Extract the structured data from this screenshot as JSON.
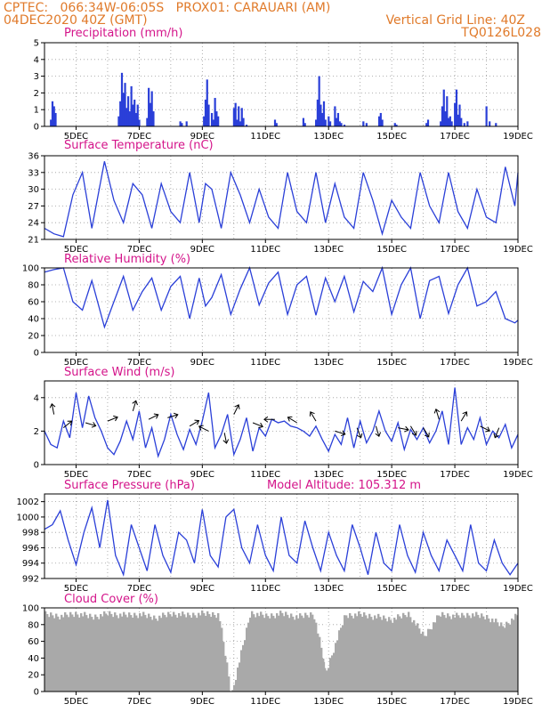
{
  "header": {
    "line1_left": "CPTEC:   066:34W-06:05S   PROX01: CARAUARI (AM)",
    "line2_left": "04DEC2020 40Z (GMT)",
    "line2_right": "Vertical Grid Line: 40Z",
    "line3_right": "TQ0126L028"
  },
  "colors": {
    "header": "#e07a2a",
    "title": "#d4148a",
    "line": "#2a3fd8",
    "cloud": "#a9a9a9"
  },
  "x_ticks": [
    "5DEC",
    "7DEC",
    "9DEC",
    "11DEC",
    "13DEC",
    "15DEC",
    "17DEC",
    "19DEC"
  ],
  "model_altitude": "Model Altitude: 105.312 m",
  "chart_data": [
    {
      "type": "bar",
      "title": "Precipitation (mm/h)",
      "ylim": [
        0,
        5
      ],
      "yticks": [
        "0",
        "1",
        "2",
        "3",
        "4",
        "5"
      ],
      "x": [
        4.2,
        4.25,
        4.3,
        4.35,
        6.35,
        6.4,
        6.45,
        6.5,
        6.55,
        6.6,
        6.65,
        6.7,
        6.75,
        6.8,
        6.85,
        6.9,
        6.95,
        7.0,
        7.25,
        7.3,
        7.35,
        7.4,
        7.45,
        8.3,
        8.35,
        8.5,
        9.05,
        9.1,
        9.15,
        9.2,
        9.3,
        9.35,
        9.4,
        9.45,
        9.5,
        10.0,
        10.05,
        10.1,
        10.15,
        10.2,
        10.25,
        10.3,
        10.4,
        11.3,
        11.35,
        12.2,
        12.25,
        12.6,
        12.65,
        12.7,
        12.75,
        12.8,
        12.85,
        12.9,
        13.0,
        13.05,
        13.2,
        13.25,
        13.3,
        13.35,
        13.4,
        13.5,
        14.1,
        14.2,
        14.6,
        14.65,
        14.7,
        15.1,
        15.15,
        16.1,
        16.15,
        16.55,
        16.6,
        16.65,
        16.7,
        16.75,
        16.8,
        16.85,
        16.9,
        17.0,
        17.05,
        17.1,
        17.15,
        17.2,
        17.3,
        17.4,
        18.0,
        18.1,
        18.3
      ],
      "values": [
        0.4,
        1.5,
        1.2,
        0.8,
        0.6,
        1.5,
        3.2,
        2.0,
        2.6,
        1.1,
        1.8,
        0.9,
        2.4,
        1.3,
        1.6,
        0.8,
        1.3,
        0.4,
        0.5,
        2.3,
        1.4,
        2.1,
        0.9,
        0.3,
        0.2,
        0.3,
        0.6,
        1.6,
        2.8,
        1.3,
        0.8,
        0.4,
        1.7,
        0.9,
        0.6,
        1.1,
        1.4,
        0.4,
        1.2,
        0.3,
        1.1,
        0.5,
        0.1,
        0.4,
        0.2,
        0.5,
        0.2,
        0.4,
        1.6,
        3.0,
        1.3,
        0.8,
        1.5,
        0.4,
        0.6,
        0.3,
        1.2,
        0.5,
        0.8,
        0.3,
        0.2,
        0.1,
        0.3,
        0.2,
        0.6,
        0.8,
        0.4,
        0.2,
        0.1,
        0.2,
        0.4,
        0.3,
        1.2,
        2.2,
        0.9,
        1.8,
        0.5,
        0.6,
        0.3,
        1.4,
        2.2,
        0.7,
        1.3,
        0.5,
        0.2,
        0.3,
        1.2,
        0.3,
        0.2
      ]
    },
    {
      "type": "line",
      "title": "Surface Temperature (nC)",
      "ylim": [
        21,
        36
      ],
      "yticks": [
        "21",
        "24",
        "27",
        "30",
        "33",
        "36"
      ],
      "x": [
        4.0,
        4.3,
        4.6,
        4.9,
        5.2,
        5.5,
        5.9,
        6.2,
        6.5,
        6.8,
        7.1,
        7.4,
        7.7,
        8.0,
        8.3,
        8.6,
        8.9,
        9.1,
        9.3,
        9.6,
        9.9,
        10.2,
        10.5,
        10.8,
        11.1,
        11.4,
        11.7,
        12.0,
        12.3,
        12.6,
        12.9,
        13.2,
        13.5,
        13.8,
        14.1,
        14.4,
        14.7,
        15.0,
        15.3,
        15.6,
        15.9,
        16.2,
        16.5,
        16.8,
        17.1,
        17.4,
        17.7,
        18.0,
        18.3,
        18.6,
        18.9,
        19.0
      ],
      "values": [
        23,
        22,
        21.5,
        29,
        33,
        23,
        35,
        28,
        24,
        31,
        29,
        23,
        31,
        26,
        24,
        33,
        24,
        31,
        30,
        23,
        33,
        29,
        24,
        30,
        25,
        23,
        33,
        26,
        24,
        33,
        24,
        31,
        25,
        23,
        33,
        28,
        22,
        28,
        25,
        23,
        33,
        27,
        24,
        33,
        26,
        23,
        30,
        25,
        24,
        34,
        27,
        33
      ]
    },
    {
      "type": "line",
      "title": "Relative Humidity (%)",
      "ylim": [
        0,
        100
      ],
      "yticks": [
        "0",
        "20",
        "40",
        "60",
        "80",
        "100"
      ],
      "x": [
        4.0,
        4.3,
        4.6,
        4.9,
        5.2,
        5.5,
        5.9,
        6.2,
        6.5,
        6.8,
        7.1,
        7.4,
        7.7,
        8.0,
        8.3,
        8.6,
        8.9,
        9.1,
        9.3,
        9.6,
        9.9,
        10.2,
        10.5,
        10.8,
        11.1,
        11.4,
        11.7,
        12.0,
        12.3,
        12.6,
        12.9,
        13.2,
        13.5,
        13.8,
        14.1,
        14.4,
        14.7,
        15.0,
        15.3,
        15.6,
        15.9,
        16.2,
        16.5,
        16.8,
        17.1,
        17.4,
        17.7,
        18.0,
        18.3,
        18.6,
        18.9,
        19.0
      ],
      "values": [
        95,
        98,
        100,
        60,
        50,
        85,
        30,
        60,
        90,
        50,
        72,
        88,
        50,
        78,
        90,
        40,
        88,
        55,
        65,
        92,
        45,
        75,
        100,
        56,
        82,
        95,
        45,
        80,
        90,
        44,
        88,
        60,
        90,
        48,
        84,
        72,
        100,
        45,
        80,
        100,
        40,
        85,
        90,
        46,
        80,
        100,
        55,
        60,
        72,
        40,
        35,
        38
      ]
    },
    {
      "type": "line",
      "title": "Surface Wind (m/s)",
      "ylim": [
        0,
        5
      ],
      "yticks": [
        "0",
        "2",
        "4"
      ],
      "x": [
        4.0,
        4.2,
        4.4,
        4.6,
        4.8,
        5.0,
        5.2,
        5.4,
        5.6,
        5.8,
        6.0,
        6.2,
        6.4,
        6.6,
        6.8,
        7.0,
        7.2,
        7.4,
        7.6,
        7.8,
        8.0,
        8.2,
        8.4,
        8.6,
        8.8,
        9.0,
        9.2,
        9.4,
        9.6,
        9.8,
        10.0,
        10.2,
        10.4,
        10.6,
        10.8,
        11.0,
        11.2,
        11.4,
        11.6,
        11.8,
        12.0,
        12.2,
        12.4,
        12.6,
        12.8,
        13.0,
        13.2,
        13.4,
        13.6,
        13.8,
        14.0,
        14.2,
        14.4,
        14.6,
        14.8,
        15.0,
        15.2,
        15.4,
        15.6,
        15.8,
        16.0,
        16.2,
        16.4,
        16.6,
        16.8,
        17.0,
        17.2,
        17.4,
        17.6,
        17.8,
        18.0,
        18.2,
        18.4,
        18.6,
        18.8,
        19.0
      ],
      "values": [
        2.0,
        1.2,
        1.0,
        2.6,
        1.6,
        4.3,
        2.2,
        4.1,
        2.8,
        2.0,
        1.0,
        0.6,
        1.4,
        2.6,
        1.5,
        3.2,
        1.0,
        2.2,
        0.5,
        1.5,
        3.0,
        1.8,
        0.9,
        2.1,
        1.2,
        2.6,
        4.3,
        1.0,
        1.8,
        3.0,
        0.6,
        1.5,
        2.8,
        0.8,
        2.2,
        1.7,
        2.7,
        2.5,
        2.6,
        2.3,
        2.2,
        2.0,
        1.7,
        2.3,
        1.5,
        0.8,
        1.8,
        1.2,
        2.8,
        1.0,
        2.6,
        1.3,
        2.0,
        3.2,
        2.0,
        1.4,
        2.5,
        0.9,
        2.1,
        1.5,
        2.2,
        1.3,
        2.0,
        3.2,
        1.2,
        4.6,
        1.2,
        2.2,
        1.5,
        2.8,
        1.2,
        2.0,
        1.6,
        2.4,
        1.0,
        1.8
      ]
    },
    {
      "type": "line",
      "title": "Surface Pressure (hPa)",
      "ylim": [
        992,
        1003
      ],
      "yticks": [
        "992",
        "994",
        "996",
        "998",
        "1000",
        "1002"
      ],
      "x": [
        4.0,
        4.25,
        4.5,
        4.75,
        5.0,
        5.25,
        5.5,
        5.75,
        6.0,
        6.25,
        6.5,
        6.75,
        7.0,
        7.25,
        7.5,
        7.75,
        8.0,
        8.25,
        8.5,
        8.75,
        9.0,
        9.25,
        9.5,
        9.75,
        10.0,
        10.25,
        10.5,
        10.75,
        11.0,
        11.25,
        11.5,
        11.75,
        12.0,
        12.25,
        12.5,
        12.75,
        13.0,
        13.25,
        13.5,
        13.75,
        14.0,
        14.25,
        14.5,
        14.75,
        15.0,
        15.25,
        15.5,
        15.75,
        16.0,
        16.25,
        16.5,
        16.75,
        17.0,
        17.25,
        17.5,
        17.75,
        18.0,
        18.25,
        18.5,
        18.75,
        19.0
      ],
      "values": [
        998.4,
        999,
        1000.8,
        997,
        993.8,
        998,
        1001.2,
        996,
        1002.2,
        995,
        992.5,
        999,
        996,
        993,
        999,
        995,
        992.8,
        998,
        997,
        994,
        1001,
        995,
        993.5,
        1000,
        1001,
        996,
        994,
        999,
        995,
        993,
        1000,
        995,
        994,
        999.5,
        996,
        993,
        998,
        995,
        993,
        999,
        996,
        992.5,
        998,
        994,
        993,
        999,
        995,
        992.8,
        998,
        995,
        993,
        997,
        995,
        993,
        999,
        994,
        993,
        997,
        994,
        992.5,
        994
      ]
    },
    {
      "type": "bar",
      "title": "Cloud Cover (%)",
      "ylim": [
        0,
        100
      ],
      "yticks": [
        "0",
        "20",
        "40",
        "60",
        "80",
        "100"
      ],
      "x": [
        4.0,
        4.5,
        5.0,
        5.5,
        6.0,
        6.5,
        7.0,
        7.5,
        8.0,
        8.5,
        9.0,
        9.5,
        9.9,
        10.5,
        11.0,
        11.5,
        12.0,
        12.5,
        12.9,
        13.5,
        14.0,
        14.5,
        15.0,
        15.5,
        16.0,
        16.5,
        17.0,
        17.5,
        18.0,
        18.5,
        19.0
      ],
      "values": [
        96,
        94,
        97,
        93,
        97,
        95,
        96,
        92,
        97,
        95,
        97,
        96,
        0,
        98,
        94,
        97,
        93,
        97,
        28,
        95,
        96,
        93,
        90,
        97,
        70,
        96,
        94,
        96,
        93,
        82,
        96
      ]
    }
  ]
}
